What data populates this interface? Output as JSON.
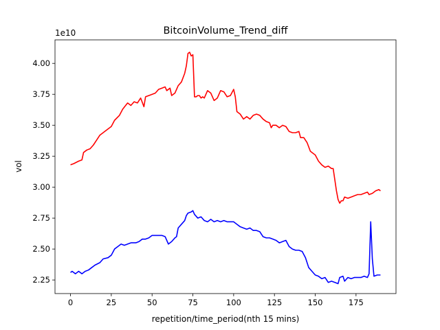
{
  "chart_data": {
    "type": "line",
    "title": "BitcoinVolume_Trend_diff",
    "xlabel": "repetition/time_period(nth 15 mins)",
    "ylabel": "vol",
    "y_offset_label": "1e10",
    "xlim": [
      -9.5,
      199.5
    ],
    "ylim": [
      21400000000.0,
      41900000000.0
    ],
    "x_ticks": [
      0,
      25,
      50,
      75,
      100,
      125,
      150,
      175
    ],
    "y_ticks": [
      2.25,
      2.5,
      2.75,
      3.0,
      3.25,
      3.5,
      3.75,
      4.0
    ],
    "grid": false,
    "legend": "none",
    "series": [
      {
        "color": "#ff0000",
        "points": [
          [
            0,
            31800000000.0
          ],
          [
            2,
            31900000000.0
          ],
          [
            5,
            32100000000.0
          ],
          [
            7,
            32200000000.0
          ],
          [
            8,
            32800000000.0
          ],
          [
            10,
            33000000000.0
          ],
          [
            12,
            33100000000.0
          ],
          [
            14,
            33400000000.0
          ],
          [
            16,
            33800000000.0
          ],
          [
            18,
            34200000000.0
          ],
          [
            20,
            34400000000.0
          ],
          [
            22,
            34600000000.0
          ],
          [
            25,
            34900000000.0
          ],
          [
            27,
            35400000000.0
          ],
          [
            30,
            35800000000.0
          ],
          [
            32,
            36300000000.0
          ],
          [
            35,
            36800000000.0
          ],
          [
            37,
            36600000000.0
          ],
          [
            39,
            36900000000.0
          ],
          [
            41,
            36800000000.0
          ],
          [
            43,
            37200000000.0
          ],
          [
            45,
            36500000000.0
          ],
          [
            46,
            37300000000.0
          ],
          [
            48,
            37400000000.0
          ],
          [
            50,
            37500000000.0
          ],
          [
            52,
            37600000000.0
          ],
          [
            54,
            37900000000.0
          ],
          [
            56,
            38000000000.0
          ],
          [
            58,
            38100000000.0
          ],
          [
            59,
            37800000000.0
          ],
          [
            61,
            38000000000.0
          ],
          [
            62,
            37400000000.0
          ],
          [
            64,
            37600000000.0
          ],
          [
            66,
            38200000000.0
          ],
          [
            68,
            38500000000.0
          ],
          [
            70,
            39200000000.0
          ],
          [
            71,
            39800000000.0
          ],
          [
            72,
            40800000000.0
          ],
          [
            73,
            40900000000.0
          ],
          [
            74,
            40600000000.0
          ],
          [
            75,
            40700000000.0
          ],
          [
            76,
            37300000000.0
          ],
          [
            77,
            37300000000.0
          ],
          [
            78,
            37400000000.0
          ],
          [
            79,
            37400000000.0
          ],
          [
            80,
            37200000000.0
          ],
          [
            81,
            37300000000.0
          ],
          [
            82,
            37200000000.0
          ],
          [
            84,
            37800000000.0
          ],
          [
            86,
            37600000000.0
          ],
          [
            88,
            37000000000.0
          ],
          [
            90,
            37200000000.0
          ],
          [
            92,
            37800000000.0
          ],
          [
            94,
            37700000000.0
          ],
          [
            96,
            37300000000.0
          ],
          [
            98,
            37400000000.0
          ],
          [
            100,
            37900000000.0
          ],
          [
            101,
            37300000000.0
          ],
          [
            102,
            36100000000.0
          ],
          [
            104,
            35900000000.0
          ],
          [
            106,
            35500000000.0
          ],
          [
            108,
            35700000000.0
          ],
          [
            110,
            35500000000.0
          ],
          [
            112,
            35800000000.0
          ],
          [
            114,
            35900000000.0
          ],
          [
            116,
            35800000000.0
          ],
          [
            118,
            35500000000.0
          ],
          [
            120,
            35300000000.0
          ],
          [
            122,
            35200000000.0
          ],
          [
            123,
            34800000000.0
          ],
          [
            124,
            35000000000.0
          ],
          [
            126,
            35000000000.0
          ],
          [
            128,
            34800000000.0
          ],
          [
            130,
            35000000000.0
          ],
          [
            132,
            34900000000.0
          ],
          [
            134,
            34500000000.0
          ],
          [
            136,
            34400000000.0
          ],
          [
            138,
            34400000000.0
          ],
          [
            140,
            34500000000.0
          ],
          [
            141,
            34000000000.0
          ],
          [
            143,
            34000000000.0
          ],
          [
            145,
            33600000000.0
          ],
          [
            147,
            32900000000.0
          ],
          [
            149,
            32700000000.0
          ],
          [
            150,
            32600000000.0
          ],
          [
            152,
            32100000000.0
          ],
          [
            154,
            31800000000.0
          ],
          [
            156,
            31600000000.0
          ],
          [
            158,
            31700000000.0
          ],
          [
            160,
            31500000000.0
          ],
          [
            161,
            31500000000.0
          ],
          [
            162,
            30600000000.0
          ],
          [
            163,
            29700000000.0
          ],
          [
            164,
            29000000000.0
          ],
          [
            165,
            28700000000.0
          ],
          [
            166,
            28900000000.0
          ],
          [
            167,
            28900000000.0
          ],
          [
            168,
            29200000000.0
          ],
          [
            170,
            29100000000.0
          ],
          [
            172,
            29200000000.0
          ],
          [
            174,
            29300000000.0
          ],
          [
            176,
            29400000000.0
          ],
          [
            178,
            29400000000.0
          ],
          [
            180,
            29500000000.0
          ],
          [
            182,
            29600000000.0
          ],
          [
            183,
            29400000000.0
          ],
          [
            185,
            29500000000.0
          ],
          [
            187,
            29700000000.0
          ],
          [
            189,
            29800000000.0
          ],
          [
            190,
            29700000000.0
          ]
        ]
      },
      {
        "color": "#0000ff",
        "points": [
          [
            0,
            23100000000.0
          ],
          [
            1,
            23200000000.0
          ],
          [
            3,
            23000000000.0
          ],
          [
            5,
            23200000000.0
          ],
          [
            7,
            23000000000.0
          ],
          [
            9,
            23200000000.0
          ],
          [
            11,
            23300000000.0
          ],
          [
            13,
            23500000000.0
          ],
          [
            15,
            23700000000.0
          ],
          [
            18,
            23900000000.0
          ],
          [
            20,
            24200000000.0
          ],
          [
            23,
            24300000000.0
          ],
          [
            25,
            24500000000.0
          ],
          [
            27,
            25000000000.0
          ],
          [
            29,
            25200000000.0
          ],
          [
            31,
            25400000000.0
          ],
          [
            33,
            25300000000.0
          ],
          [
            35,
            25400000000.0
          ],
          [
            37,
            25500000000.0
          ],
          [
            40,
            25500000000.0
          ],
          [
            42,
            25600000000.0
          ],
          [
            44,
            25800000000.0
          ],
          [
            46,
            25800000000.0
          ],
          [
            48,
            25900000000.0
          ],
          [
            50,
            26100000000.0
          ],
          [
            52,
            26100000000.0
          ],
          [
            54,
            26100000000.0
          ],
          [
            56,
            26100000000.0
          ],
          [
            58,
            26000000000.0
          ],
          [
            60,
            25400000000.0
          ],
          [
            62,
            25600000000.0
          ],
          [
            64,
            25900000000.0
          ],
          [
            65,
            26000000000.0
          ],
          [
            66,
            26700000000.0
          ],
          [
            68,
            27000000000.0
          ],
          [
            70,
            27300000000.0
          ],
          [
            71,
            27700000000.0
          ],
          [
            72,
            27900000000.0
          ],
          [
            74,
            28000000000.0
          ],
          [
            75,
            28100000000.0
          ],
          [
            76,
            27800000000.0
          ],
          [
            78,
            27500000000.0
          ],
          [
            80,
            27600000000.0
          ],
          [
            82,
            27300000000.0
          ],
          [
            84,
            27200000000.0
          ],
          [
            86,
            27400000000.0
          ],
          [
            88,
            27200000000.0
          ],
          [
            90,
            27300000000.0
          ],
          [
            92,
            27200000000.0
          ],
          [
            94,
            27300000000.0
          ],
          [
            96,
            27200000000.0
          ],
          [
            98,
            27200000000.0
          ],
          [
            100,
            27200000000.0
          ],
          [
            102,
            27000000000.0
          ],
          [
            104,
            26800000000.0
          ],
          [
            106,
            26700000000.0
          ],
          [
            108,
            26600000000.0
          ],
          [
            110,
            26700000000.0
          ],
          [
            112,
            26500000000.0
          ],
          [
            114,
            26500000000.0
          ],
          [
            116,
            26400000000.0
          ],
          [
            118,
            26000000000.0
          ],
          [
            120,
            25900000000.0
          ],
          [
            122,
            25900000000.0
          ],
          [
            124,
            25800000000.0
          ],
          [
            126,
            25700000000.0
          ],
          [
            128,
            25500000000.0
          ],
          [
            130,
            25600000000.0
          ],
          [
            132,
            25700000000.0
          ],
          [
            134,
            25200000000.0
          ],
          [
            136,
            25000000000.0
          ],
          [
            138,
            24900000000.0
          ],
          [
            140,
            24900000000.0
          ],
          [
            142,
            24800000000.0
          ],
          [
            144,
            24300000000.0
          ],
          [
            146,
            23500000000.0
          ],
          [
            148,
            23200000000.0
          ],
          [
            150,
            22900000000.0
          ],
          [
            152,
            22800000000.0
          ],
          [
            154,
            22600000000.0
          ],
          [
            156,
            22700000000.0
          ],
          [
            158,
            22300000000.0
          ],
          [
            160,
            22400000000.0
          ],
          [
            162,
            22300000000.0
          ],
          [
            164,
            22200000000.0
          ],
          [
            165,
            22700000000.0
          ],
          [
            167,
            22800000000.0
          ],
          [
            168,
            22400000000.0
          ],
          [
            170,
            22700000000.0
          ],
          [
            172,
            22600000000.0
          ],
          [
            174,
            22700000000.0
          ],
          [
            176,
            22700000000.0
          ],
          [
            178,
            22700000000.0
          ],
          [
            180,
            22800000000.0
          ],
          [
            182,
            22700000000.0
          ],
          [
            183,
            23000000000.0
          ],
          [
            184,
            27200000000.0
          ],
          [
            185,
            24200000000.0
          ],
          [
            186,
            22800000000.0
          ],
          [
            188,
            22900000000.0
          ],
          [
            190,
            22900000000.0
          ]
        ]
      }
    ]
  }
}
